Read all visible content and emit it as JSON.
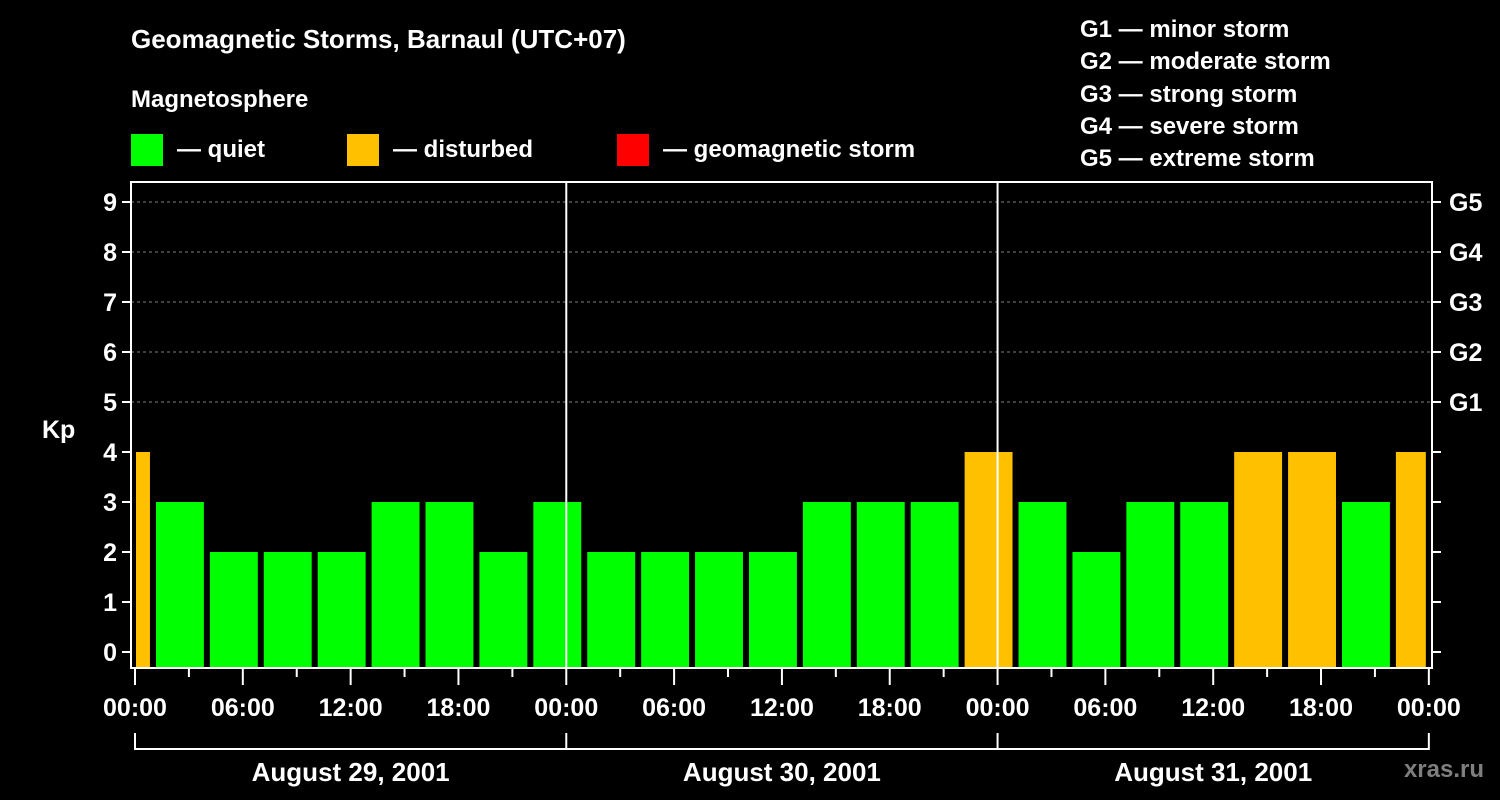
{
  "title": "Geomagnetic Storms, Barnaul (UTC+07)",
  "legend": {
    "heading": "Magnetosphere",
    "items": [
      {
        "label": "— quiet",
        "color": "#00ff00"
      },
      {
        "label": "— disturbed",
        "color": "#ffc000"
      },
      {
        "label": "— geomagnetic storm",
        "color": "#ff0000"
      }
    ]
  },
  "g_scale": [
    "G1 — minor storm",
    "G2 — moderate storm",
    "G3 — strong storm",
    "G4 — severe storm",
    "G5 — extreme storm"
  ],
  "watermark": "xras.ru",
  "chart_data": {
    "type": "bar",
    "title": "Geomagnetic Storms, Barnaul (UTC+07)",
    "ylabel": "Kp",
    "ylim": [
      0,
      9
    ],
    "yticks": [
      0,
      1,
      2,
      3,
      4,
      5,
      6,
      7,
      8,
      9
    ],
    "right_ticks": [
      {
        "kp": 5,
        "label": "G1"
      },
      {
        "kp": 6,
        "label": "G2"
      },
      {
        "kp": 7,
        "label": "G3"
      },
      {
        "kp": 8,
        "label": "G4"
      },
      {
        "kp": 9,
        "label": "G5"
      }
    ],
    "grid_from_kp": 5,
    "xlim_hours": [
      0,
      72
    ],
    "xtick_labels": [
      "00:00",
      "06:00",
      "12:00",
      "18:00",
      "00:00",
      "06:00",
      "12:00",
      "18:00",
      "00:00",
      "06:00",
      "12:00",
      "18:00",
      "00:00"
    ],
    "days": [
      "August 29, 2001",
      "August 30, 2001",
      "August 31, 2001"
    ],
    "bars": [
      {
        "start": 0,
        "end": 1,
        "kp": 4,
        "status": "disturbed"
      },
      {
        "start": 1,
        "end": 4,
        "kp": 3,
        "status": "quiet"
      },
      {
        "start": 4,
        "end": 7,
        "kp": 2,
        "status": "quiet"
      },
      {
        "start": 7,
        "end": 10,
        "kp": 2,
        "status": "quiet"
      },
      {
        "start": 10,
        "end": 13,
        "kp": 2,
        "status": "quiet"
      },
      {
        "start": 13,
        "end": 16,
        "kp": 3,
        "status": "quiet"
      },
      {
        "start": 16,
        "end": 19,
        "kp": 3,
        "status": "quiet"
      },
      {
        "start": 19,
        "end": 22,
        "kp": 2,
        "status": "quiet"
      },
      {
        "start": 22,
        "end": 25,
        "kp": 3,
        "status": "quiet"
      },
      {
        "start": 25,
        "end": 28,
        "kp": 2,
        "status": "quiet"
      },
      {
        "start": 28,
        "end": 31,
        "kp": 2,
        "status": "quiet"
      },
      {
        "start": 31,
        "end": 34,
        "kp": 2,
        "status": "quiet"
      },
      {
        "start": 34,
        "end": 37,
        "kp": 2,
        "status": "quiet"
      },
      {
        "start": 37,
        "end": 40,
        "kp": 3,
        "status": "quiet"
      },
      {
        "start": 40,
        "end": 43,
        "kp": 3,
        "status": "quiet"
      },
      {
        "start": 43,
        "end": 46,
        "kp": 3,
        "status": "quiet"
      },
      {
        "start": 46,
        "end": 49,
        "kp": 4,
        "status": "disturbed"
      },
      {
        "start": 49,
        "end": 52,
        "kp": 3,
        "status": "quiet"
      },
      {
        "start": 52,
        "end": 55,
        "kp": 2,
        "status": "quiet"
      },
      {
        "start": 55,
        "end": 58,
        "kp": 3,
        "status": "quiet"
      },
      {
        "start": 58,
        "end": 61,
        "kp": 3,
        "status": "quiet"
      },
      {
        "start": 61,
        "end": 64,
        "kp": 4,
        "status": "disturbed"
      },
      {
        "start": 64,
        "end": 67,
        "kp": 4,
        "status": "disturbed"
      },
      {
        "start": 67,
        "end": 70,
        "kp": 3,
        "status": "quiet"
      },
      {
        "start": 70,
        "end": 72,
        "kp": 4,
        "status": "disturbed"
      }
    ],
    "colors": {
      "quiet": "#00ff00",
      "disturbed": "#ffc000",
      "storm": "#ff0000"
    }
  }
}
